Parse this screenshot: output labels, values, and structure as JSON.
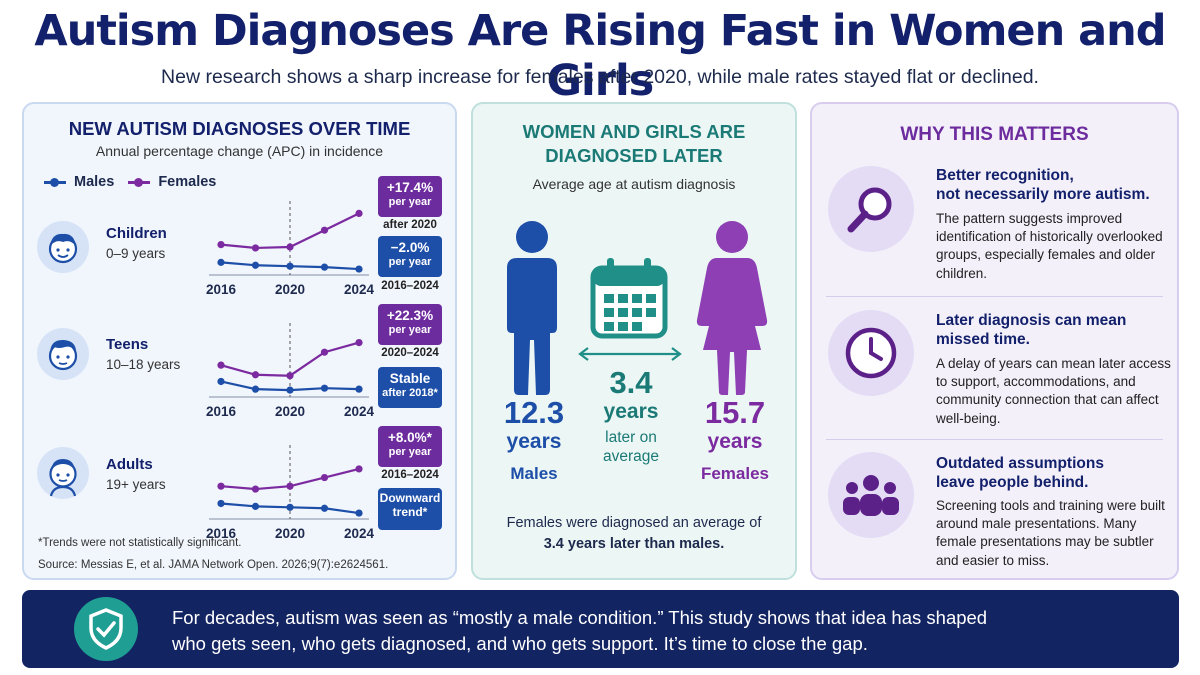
{
  "header": {
    "title": "Autism Diagnoses Are Rising Fast in Women and Girls",
    "subtitle": "New research shows a sharp increase for females after 2020, while male rates stayed flat or declined."
  },
  "colors": {
    "males": "#1d4fa8",
    "females": "#7b2aa0",
    "teal": "#1f8f87",
    "navy": "#13206b"
  },
  "trends": {
    "title": "NEW AUTISM DIAGNOSES OVER TIME",
    "subtitle": "Annual percentage change (APC) in incidence",
    "legend": {
      "males": "Males",
      "females": "Females"
    },
    "groups": [
      {
        "label": "Children",
        "range": "0–9 years",
        "female_badge": {
          "value": "+17.4%",
          "unit": "per year",
          "caption": "after 2020"
        },
        "male_badge": {
          "value": "−2.0%",
          "unit": "per year",
          "caption": "2016–2024"
        }
      },
      {
        "label": "Teens",
        "range": "10–18 years",
        "female_badge": {
          "value": "+22.3%",
          "unit": "per year",
          "caption": "2020–2024"
        },
        "male_badge": {
          "value": "Stable",
          "unit": "after 2018*",
          "caption": ""
        }
      },
      {
        "label": "Adults",
        "range": "19+ years",
        "female_badge": {
          "value": "+8.0%*",
          "unit": "per year",
          "caption": "2016–2024"
        },
        "male_badge": {
          "value": "Downward",
          "unit": "trend*",
          "caption": ""
        }
      }
    ],
    "footnote": "*Trends were not statistically significant.",
    "source": "Source: Messias E, et al. JAMA Network Open. 2026;9(7):e2624561."
  },
  "chart_data": [
    {
      "type": "line",
      "title": "Children",
      "x": [
        2016,
        2018,
        2020,
        2022,
        2024
      ],
      "xticks": [
        "2016",
        "2020",
        "2024"
      ],
      "marker": 2020,
      "series": [
        {
          "name": "Females",
          "values": [
            0.55,
            0.48,
            0.5,
            0.85,
            1.2
          ]
        },
        {
          "name": "Males",
          "values": [
            0.18,
            0.12,
            0.1,
            0.08,
            0.04
          ]
        }
      ]
    },
    {
      "type": "line",
      "title": "Teens",
      "x": [
        2016,
        2018,
        2020,
        2022,
        2024
      ],
      "xticks": [
        "2016",
        "2020",
        "2024"
      ],
      "marker": 2020,
      "series": [
        {
          "name": "Females",
          "values": [
            0.58,
            0.38,
            0.36,
            0.85,
            1.05
          ]
        },
        {
          "name": "Males",
          "values": [
            0.24,
            0.08,
            0.06,
            0.1,
            0.08
          ]
        }
      ]
    },
    {
      "type": "line",
      "title": "Adults",
      "x": [
        2016,
        2018,
        2020,
        2022,
        2024
      ],
      "xticks": [
        "2016",
        "2020",
        "2024"
      ],
      "marker": 2020,
      "series": [
        {
          "name": "Females",
          "values": [
            0.6,
            0.54,
            0.6,
            0.78,
            0.96
          ]
        },
        {
          "name": "Males",
          "values": [
            0.24,
            0.18,
            0.16,
            0.14,
            0.04
          ]
        }
      ]
    }
  ],
  "age": {
    "title_line1": "WOMEN AND GIRLS ARE",
    "title_line2": "DIAGNOSED LATER",
    "subtitle": "Average age at autism diagnosis",
    "males_value": "12.3",
    "males_unit": "years",
    "males_label": "Males",
    "females_value": "15.7",
    "females_unit": "years",
    "females_label": "Females",
    "gap_value": "3.4",
    "gap_unit": "years",
    "gap_note1": "later on",
    "gap_note2": "average",
    "caption1": "Females were diagnosed an average of",
    "caption2": "3.4 years later than males."
  },
  "why": {
    "title": "WHY THIS MATTERS",
    "items": [
      {
        "icon": "magnifier-icon",
        "head1": "Better recognition,",
        "head2": "not necessarily more autism.",
        "body": "The pattern suggests improved identification of historically overlooked groups, especially females and older children."
      },
      {
        "icon": "clock-icon",
        "head1": "Later diagnosis can mean",
        "head2": "missed time.",
        "body": "A delay of years can mean later access to support, accommodations, and community connection that can affect well-being."
      },
      {
        "icon": "people-icon",
        "head1": "Outdated assumptions",
        "head2": "leave people behind.",
        "body": "Screening tools and training were built around male presentations. Many female presentations may be subtler and easier to miss."
      }
    ]
  },
  "banner": {
    "line1": "For decades, autism was seen as “mostly a male condition.” This study shows that idea has shaped",
    "line2": "who gets seen, who gets diagnosed, and who gets support. It’s time to close the gap."
  }
}
